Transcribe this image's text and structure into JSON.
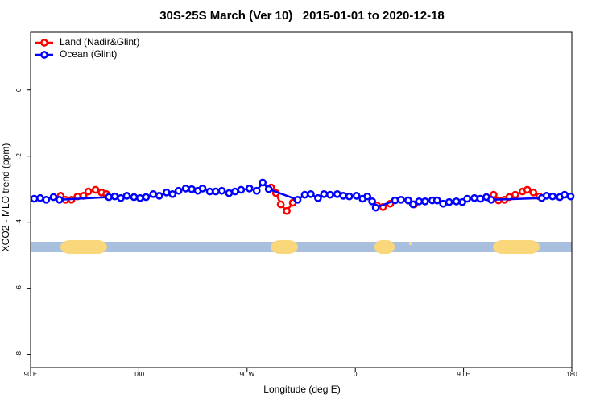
{
  "chart_data": {
    "type": "line",
    "title": "30S-25S March (Ver 10)   2015-01-01 to 2020-12-18",
    "x_label": "Longitude (deg E)",
    "y_label": "XCO2 - MLO trend (ppm)",
    "xlim": [
      90,
      540
    ],
    "ylim": [
      -8.4,
      1.75
    ],
    "xticks": [
      {
        "value": 90,
        "label": "90 E"
      },
      {
        "value": 180,
        "label": "180"
      },
      {
        "value": 270,
        "label": "90 W"
      },
      {
        "value": 360,
        "label": "0"
      },
      {
        "value": 450,
        "label": "90 E"
      },
      {
        "value": 540,
        "label": "180"
      }
    ],
    "yticks": [
      -8,
      -6,
      -4,
      -2,
      0
    ],
    "legend": "top-left",
    "series": [
      {
        "name": "Land (Nadir&Glint)",
        "color": "#ff0000",
        "x": [
          115,
          119,
          124,
          129,
          134,
          138,
          144,
          149,
          153,
          null,
          290,
          294,
          298,
          303,
          308,
          null,
          378,
          383,
          389,
          null,
          409,
          null,
          475,
          479,
          484,
          488,
          493,
          499,
          503,
          508,
          513
        ],
        "values": [
          -3.2,
          -3.32,
          -3.32,
          -3.22,
          -3.2,
          -3.07,
          -3.02,
          -3.1,
          -3.15,
          null,
          -2.95,
          -3.12,
          -3.46,
          -3.66,
          -3.41,
          null,
          -3.49,
          -3.54,
          -3.44,
          null,
          -3.46,
          null,
          -3.17,
          -3.34,
          -3.32,
          -3.24,
          -3.17,
          -3.07,
          -3.02,
          -3.1,
          -3.22
        ]
      },
      {
        "name": "Ocean (Glint)",
        "color": "#0000ff",
        "x": [
          93,
          98,
          103,
          109,
          114,
          155,
          160,
          165,
          170,
          176,
          181,
          186,
          192,
          197,
          203,
          208,
          213,
          219,
          224,
          229,
          233,
          239,
          244,
          249,
          255,
          260,
          265,
          272,
          278,
          283,
          288,
          312,
          318,
          323,
          329,
          334,
          339,
          345,
          350,
          355,
          361,
          366,
          370,
          374,
          377,
          393,
          398,
          404,
          408,
          413,
          418,
          424,
          428,
          433,
          438,
          444,
          449,
          453,
          459,
          464,
          469,
          473,
          515,
          519,
          524,
          530,
          534,
          539
        ],
        "values": [
          -3.29,
          -3.27,
          -3.32,
          -3.24,
          -3.32,
          -3.24,
          -3.22,
          -3.27,
          -3.2,
          -3.24,
          -3.27,
          -3.24,
          -3.15,
          -3.2,
          -3.1,
          -3.15,
          -3.05,
          -2.98,
          -3.0,
          -3.05,
          -2.98,
          -3.07,
          -3.07,
          -3.05,
          -3.12,
          -3.07,
          -3.02,
          -2.98,
          -3.05,
          -2.8,
          -3.0,
          -3.32,
          -3.17,
          -3.15,
          -3.27,
          -3.15,
          -3.17,
          -3.15,
          -3.2,
          -3.22,
          -3.2,
          -3.29,
          -3.22,
          -3.37,
          -3.56,
          -3.34,
          -3.32,
          -3.34,
          -3.46,
          -3.37,
          -3.37,
          -3.34,
          -3.34,
          -3.44,
          -3.39,
          -3.37,
          -3.39,
          -3.29,
          -3.27,
          -3.29,
          -3.24,
          -3.32,
          -3.27,
          -3.2,
          -3.22,
          -3.24,
          -3.17,
          -3.22
        ]
      }
    ]
  }
}
